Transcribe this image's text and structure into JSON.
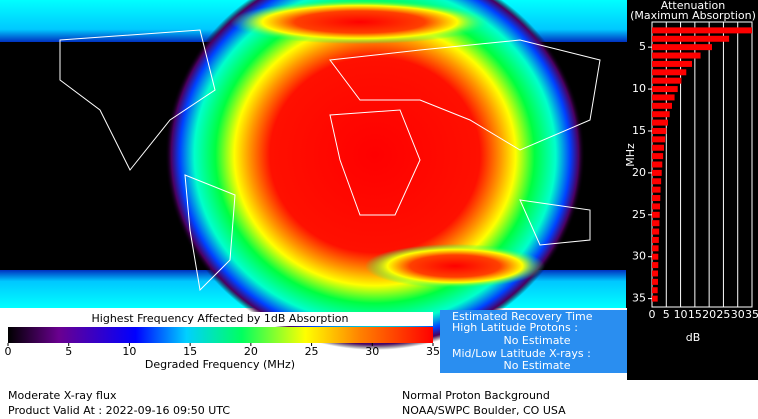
{
  "chart_data": {
    "type": "bar",
    "orientation": "horizontal",
    "title": "Attenuation",
    "subtitle": "(Maximum Absorption)",
    "xlabel": "dB",
    "ylabel": "MHz",
    "color": "#ff0000",
    "y": [
      3,
      4,
      5,
      6,
      7,
      8,
      9,
      10,
      11,
      12,
      13,
      14,
      15,
      16,
      17,
      18,
      19,
      20,
      21,
      22,
      23,
      24,
      25,
      26,
      27,
      28,
      29,
      30,
      31,
      32,
      33,
      34,
      35
    ],
    "values": [
      35,
      27,
      21,
      17,
      14,
      12,
      10.3,
      9,
      7.9,
      7,
      6.2,
      5.6,
      5,
      4.6,
      4.2,
      3.9,
      3.6,
      3.4,
      3.2,
      3,
      2.9,
      2.8,
      2.7,
      2.6,
      2.5,
      2.4,
      2.3,
      2.2,
      2.2,
      2.1,
      2.1,
      2,
      2
    ],
    "xlim": [
      0,
      35
    ],
    "xticks": [
      0,
      5,
      10,
      15,
      20,
      25,
      30,
      35
    ],
    "ylim": [
      2,
      36
    ],
    "yticks": [
      5,
      10,
      15,
      20,
      25,
      30,
      35
    ],
    "grid": true
  },
  "colorbar": {
    "title": "Highest Frequency Affected by 1dB Absorption",
    "label": "Degraded Frequency (MHz)",
    "lim": [
      0,
      35
    ],
    "ticks": [
      0,
      5,
      10,
      15,
      20,
      25,
      30,
      35
    ]
  },
  "recovery": {
    "title": "Estimated Recovery Time",
    "high_label": "High Latitude Protons :",
    "high_value": "No Estimate",
    "mid_label": "Mid/Low Latitude X-rays :",
    "mid_value": "No Estimate"
  },
  "footer": {
    "left": [
      "Moderate X-ray flux",
      "Product Valid At : 2022-09-16 09:50 UTC"
    ],
    "right": [
      "Normal Proton Background",
      "NOAA/SWPC Boulder, CO USA"
    ]
  }
}
